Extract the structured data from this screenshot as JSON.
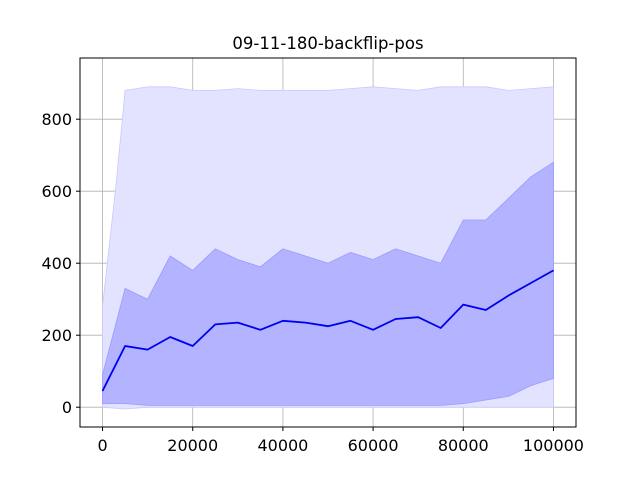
{
  "chart_data": {
    "type": "line",
    "title": "09-11-180-backflip-pos",
    "xlabel": "",
    "ylabel": "",
    "xlim": [
      -5000,
      105000
    ],
    "ylim": [
      -55,
      970
    ],
    "grid": true,
    "x_ticks": [
      0,
      20000,
      40000,
      60000,
      80000,
      100000
    ],
    "x_tick_labels": [
      "0",
      "20000",
      "40000",
      "60000",
      "80000",
      "100000"
    ],
    "y_ticks": [
      0,
      200,
      400,
      600,
      800
    ],
    "y_tick_labels": [
      "0",
      "200",
      "400",
      "600",
      "800"
    ],
    "colors": {
      "mean_line": "#0000ee",
      "inner_band": "#b3b3ff",
      "outer_band": "#e3e3ff",
      "grid": "#b0b0b0"
    },
    "series": [
      {
        "role": "mean",
        "x": [
          0,
          5000,
          10000,
          15000,
          20000,
          25000,
          30000,
          35000,
          40000,
          45000,
          50000,
          55000,
          60000,
          65000,
          70000,
          75000,
          80000,
          85000,
          90000,
          95000,
          100000
        ],
        "values": [
          45,
          170,
          160,
          195,
          170,
          230,
          235,
          215,
          240,
          235,
          225,
          240,
          215,
          245,
          250,
          220,
          285,
          270,
          310,
          345,
          380
        ]
      },
      {
        "role": "inner_band_upper",
        "x": [
          0,
          5000,
          10000,
          15000,
          20000,
          25000,
          30000,
          35000,
          40000,
          45000,
          50000,
          55000,
          60000,
          65000,
          70000,
          75000,
          80000,
          85000,
          90000,
          95000,
          100000
        ],
        "values": [
          90,
          330,
          300,
          420,
          380,
          440,
          410,
          390,
          440,
          420,
          400,
          430,
          410,
          440,
          420,
          400,
          520,
          520,
          580,
          640,
          680
        ]
      },
      {
        "role": "inner_band_lower",
        "x": [
          0,
          5000,
          10000,
          15000,
          20000,
          25000,
          30000,
          35000,
          40000,
          45000,
          50000,
          55000,
          60000,
          65000,
          70000,
          75000,
          80000,
          85000,
          90000,
          95000,
          100000
        ],
        "values": [
          10,
          10,
          5,
          5,
          5,
          5,
          5,
          5,
          5,
          5,
          5,
          5,
          5,
          5,
          5,
          5,
          10,
          20,
          30,
          60,
          80
        ]
      },
      {
        "role": "outer_band_upper",
        "x": [
          0,
          3000,
          5000,
          10000,
          15000,
          20000,
          25000,
          30000,
          35000,
          40000,
          45000,
          50000,
          55000,
          60000,
          65000,
          70000,
          75000,
          80000,
          85000,
          90000,
          95000,
          100000
        ],
        "values": [
          280,
          620,
          880,
          890,
          890,
          880,
          880,
          885,
          880,
          880,
          880,
          880,
          885,
          890,
          885,
          880,
          890,
          890,
          890,
          880,
          885,
          890
        ]
      },
      {
        "role": "outer_band_lower",
        "x": [
          0,
          5000,
          10000,
          15000,
          20000,
          25000,
          30000,
          35000,
          40000,
          45000,
          50000,
          55000,
          60000,
          65000,
          70000,
          75000,
          80000,
          85000,
          90000,
          95000,
          100000
        ],
        "values": [
          0,
          -5,
          0,
          0,
          0,
          0,
          0,
          0,
          0,
          0,
          0,
          0,
          0,
          0,
          0,
          0,
          0,
          0,
          0,
          0,
          0
        ]
      }
    ]
  }
}
